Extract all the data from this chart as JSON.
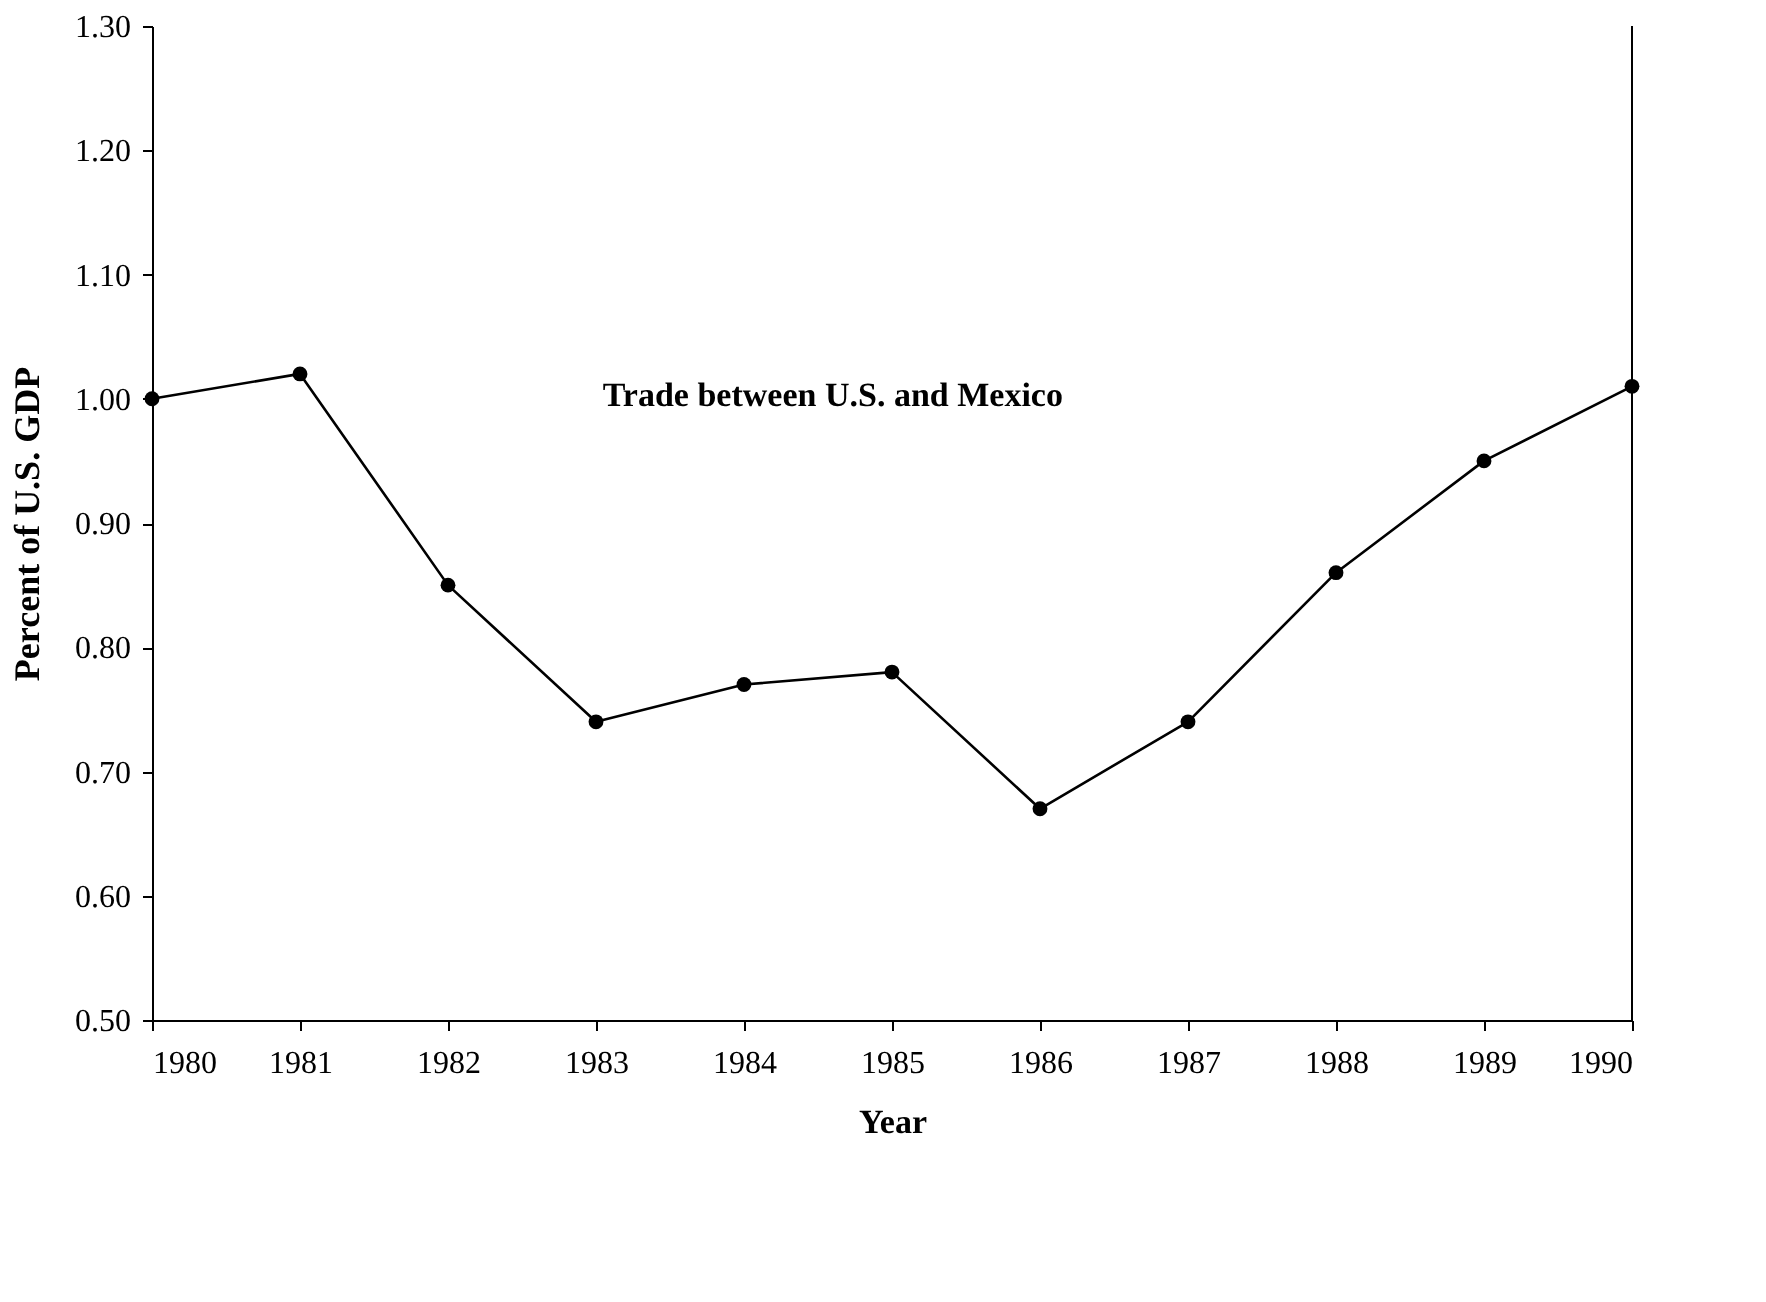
{
  "chart_data": {
    "type": "line",
    "title": "Trade between U.S. and Mexico",
    "xlabel": "Year",
    "ylabel": "Percent of U.S. GDP",
    "x": [
      1980,
      1981,
      1982,
      1983,
      1984,
      1985,
      1986,
      1987,
      1988,
      1989,
      1990
    ],
    "series": [
      {
        "color": "#000000",
        "values": [
          1.0,
          1.02,
          0.85,
          0.74,
          0.77,
          0.78,
          0.67,
          0.74,
          0.86,
          0.95,
          1.01
        ]
      }
    ],
    "xlim": [
      1980,
      1990
    ],
    "xticks": [
      1980,
      1981,
      1982,
      1983,
      1984,
      1985,
      1986,
      1987,
      1988,
      1989,
      1990
    ],
    "ylim": [
      0.5,
      1.3
    ],
    "yticks": [
      {
        "value": 0.5,
        "label": "0.50"
      },
      {
        "value": 0.6,
        "label": "0.60"
      },
      {
        "value": 0.7,
        "label": "0.70"
      },
      {
        "value": 0.8,
        "label": "0.80"
      },
      {
        "value": 0.9,
        "label": "0.90"
      },
      {
        "value": 1.0,
        "label": "1.00"
      },
      {
        "value": 1.1,
        "label": "1.10"
      },
      {
        "value": 1.2,
        "label": "1.20"
      },
      {
        "value": 1.3,
        "label": "1.30"
      }
    ],
    "marker": "circle",
    "line_style": "solid"
  }
}
